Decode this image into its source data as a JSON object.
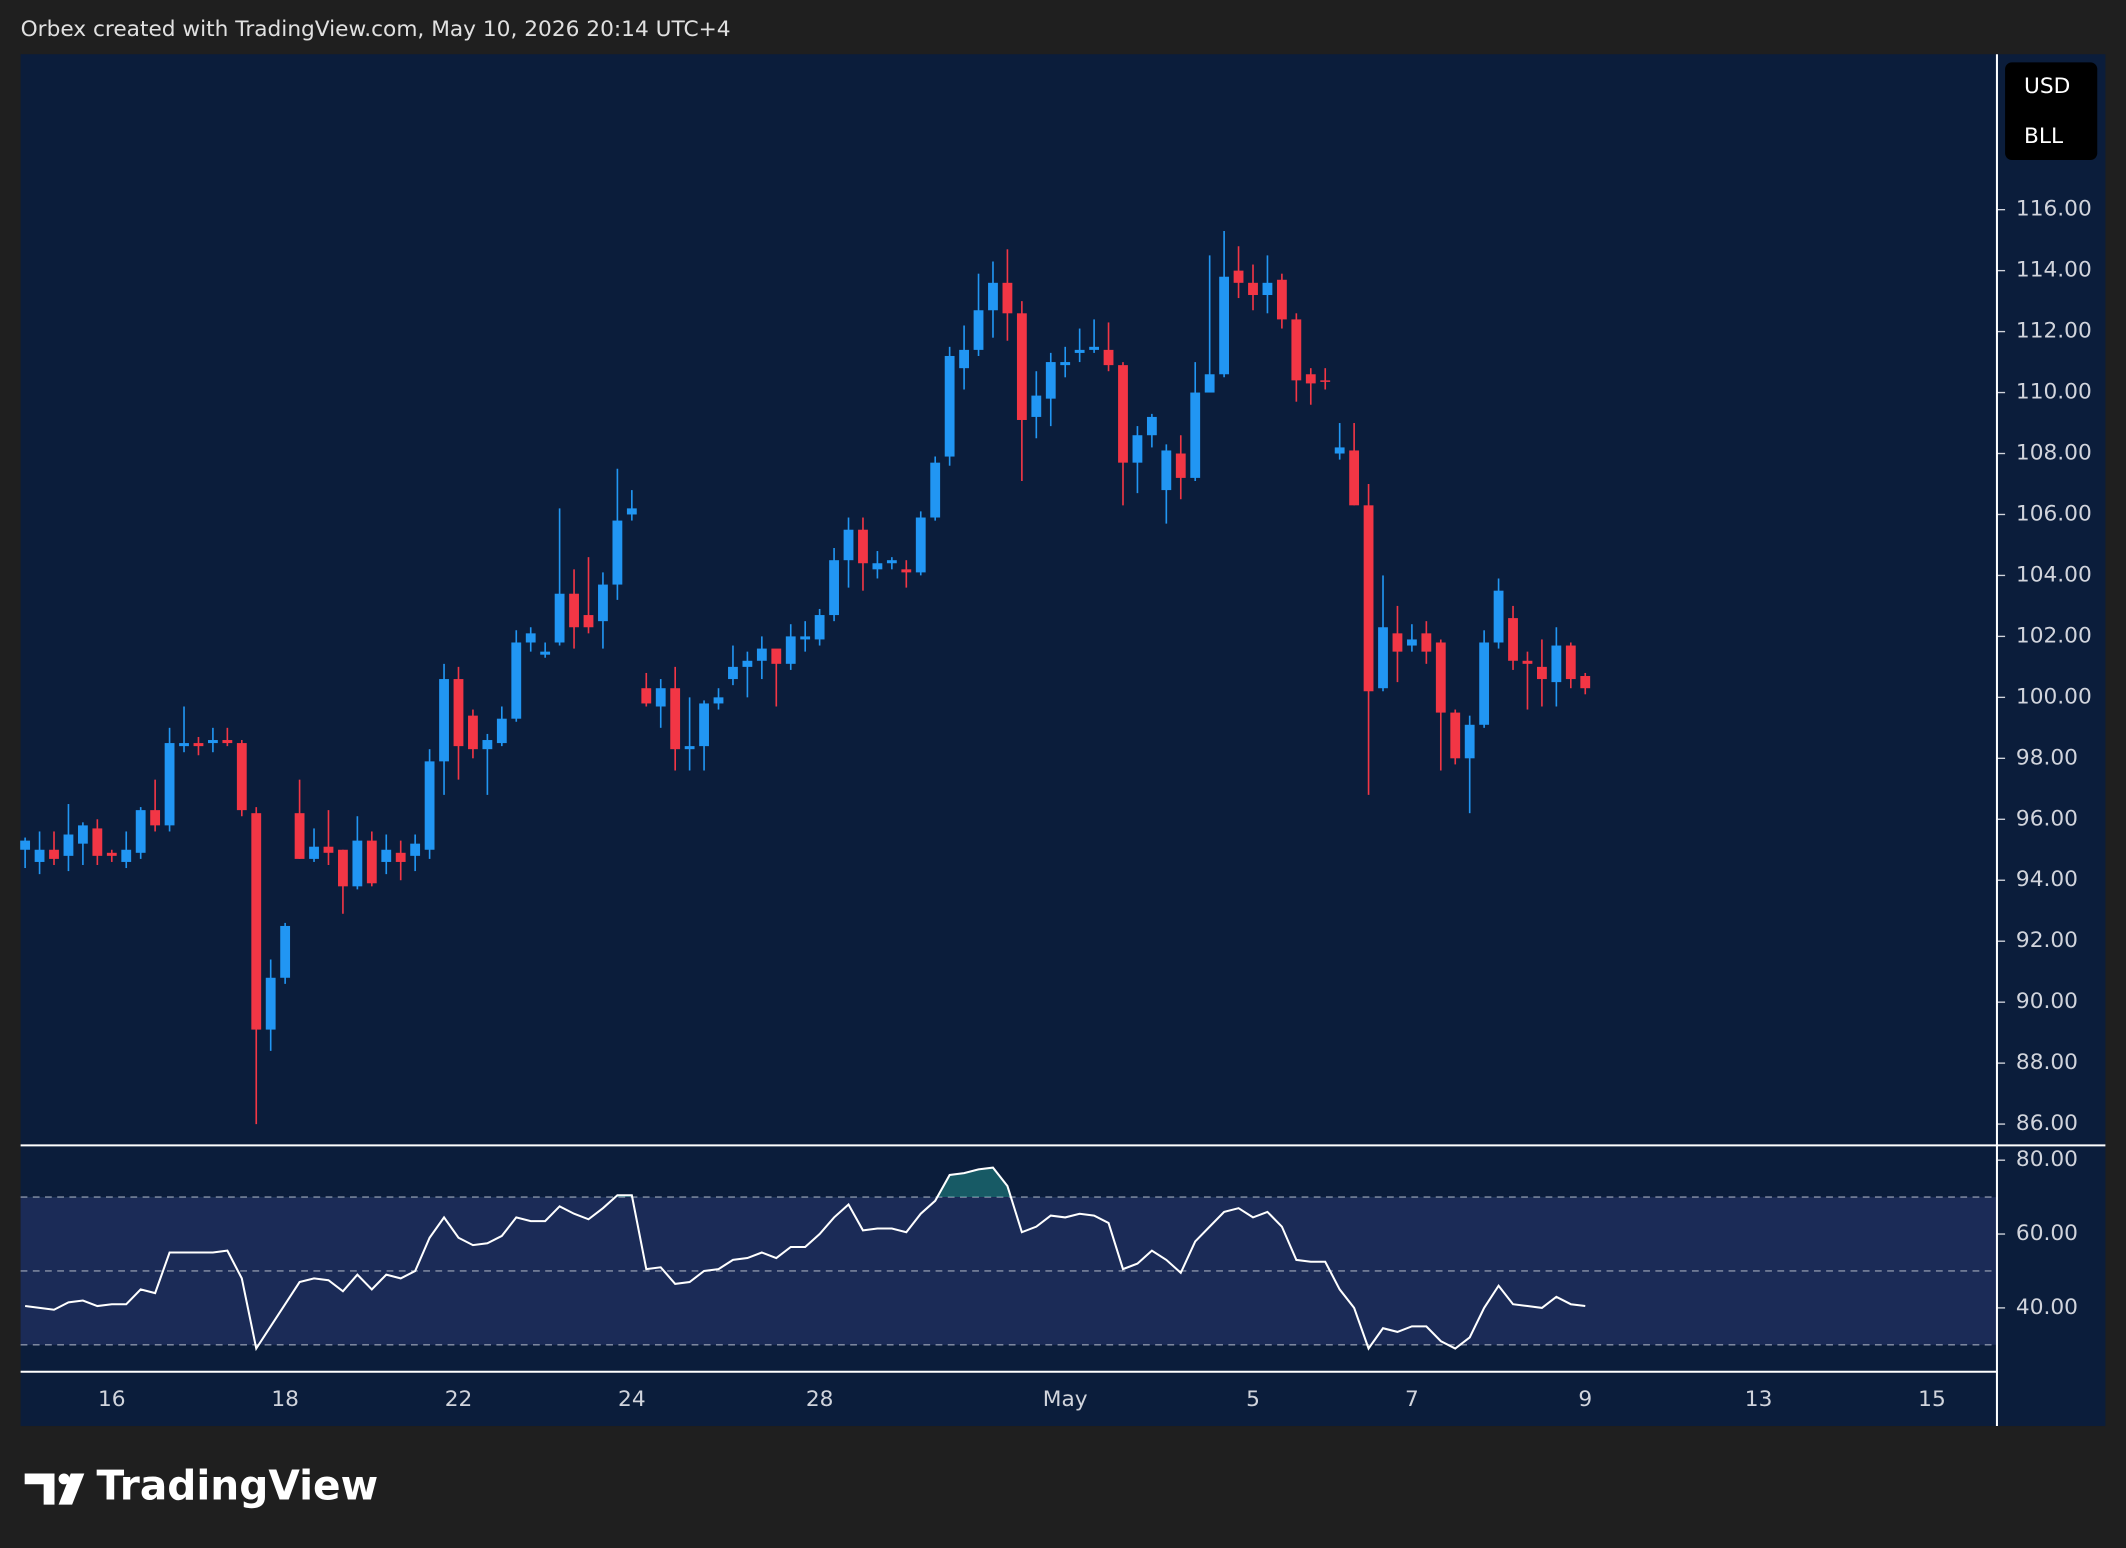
{
  "header": "Orbex created with TradingView.com, May 10, 2026 20:14 UTC+4",
  "brand": "TradingView",
  "currency_label": "USD",
  "unit_label": "BLL",
  "chart_data": [
    {
      "type": "candlestick",
      "categories": [
        null,
        null,
        null,
        null,
        null,
        null,
        "16",
        null,
        null,
        null,
        null,
        null,
        null,
        null,
        null,
        null,
        null,
        null,
        "18",
        null,
        null,
        null,
        null,
        null,
        null,
        null,
        null,
        null,
        null,
        null,
        "22",
        null,
        null,
        null,
        null,
        null,
        null,
        null,
        null,
        null,
        null,
        null,
        "24",
        null,
        null,
        null,
        null,
        null,
        null,
        null,
        null,
        null,
        null,
        null,
        null,
        "28",
        null,
        null,
        null,
        null,
        null,
        null,
        null,
        null,
        null,
        null,
        null,
        null,
        null,
        null,
        null,
        null,
        "May",
        null,
        null,
        null,
        null,
        null,
        null,
        null,
        null,
        null,
        null,
        null,
        null,
        "5",
        null,
        null,
        null,
        null,
        null,
        null,
        null,
        null,
        null,
        null,
        "7",
        null,
        null,
        null,
        null,
        null,
        null,
        null,
        null,
        null,
        null,
        null,
        "9",
        null,
        null,
        null,
        null,
        null,
        null,
        null,
        null,
        null,
        null,
        null,
        "13",
        null,
        null,
        null,
        null,
        null,
        null,
        null,
        null,
        null,
        null,
        null,
        "15",
        null,
        null,
        null,
        null
      ],
      "open": [
        95.0,
        94.6,
        95.0,
        94.8,
        95.2,
        95.7,
        94.9,
        94.6,
        94.9,
        96.3,
        95.8,
        98.4,
        98.5,
        98.5,
        98.6,
        98.5,
        96.2,
        89.1,
        90.8,
        96.2,
        94.7,
        95.1,
        95.0,
        93.8,
        95.3,
        94.6,
        94.9,
        94.8,
        95.0,
        97.9,
        100.6,
        99.4,
        98.3,
        98.5,
        99.3,
        101.8,
        101.4,
        101.8,
        103.4,
        102.7,
        102.5,
        103.7,
        106.0,
        100.3,
        99.7,
        100.3,
        98.3,
        98.4,
        99.8,
        100.6,
        101.0,
        101.2,
        101.6,
        101.1,
        101.9,
        101.9,
        102.7,
        104.5,
        105.5,
        104.2,
        104.4,
        104.2,
        104.1,
        105.9,
        107.9,
        110.8,
        111.4,
        112.7,
        113.6,
        112.6,
        109.2,
        109.8,
        110.9,
        111.3,
        111.4,
        111.4,
        110.9,
        107.7,
        108.6,
        106.8,
        108.0,
        107.2,
        110.0,
        110.6,
        114.0,
        113.6,
        113.2,
        113.7,
        112.4,
        110.6,
        110.4,
        108.0,
        108.1,
        106.3,
        100.3,
        102.1,
        101.7,
        102.1,
        101.8,
        99.5,
        98.0,
        99.1,
        101.8,
        102.6,
        101.2,
        101.0,
        100.5,
        101.7,
        100.7,
        null,
        null,
        null,
        null,
        null,
        null,
        null,
        null,
        null,
        null,
        null,
        null,
        null,
        null,
        null,
        null,
        null,
        null,
        null,
        null,
        null,
        null,
        null,
        null,
        null,
        null,
        null,
        null
      ],
      "high": [
        95.4,
        95.6,
        95.6,
        96.5,
        95.9,
        96.0,
        95.0,
        95.6,
        96.4,
        97.3,
        99.0,
        99.7,
        98.7,
        99.0,
        99.0,
        98.6,
        96.4,
        91.4,
        92.6,
        97.3,
        95.7,
        96.3,
        95.0,
        96.1,
        95.6,
        95.5,
        95.3,
        95.5,
        98.3,
        101.1,
        101.0,
        99.6,
        98.8,
        99.7,
        102.2,
        102.3,
        101.8,
        106.2,
        104.2,
        104.6,
        104.1,
        107.5,
        106.8,
        100.8,
        100.6,
        101.0,
        100.0,
        99.9,
        100.3,
        101.7,
        101.5,
        102.0,
        101.5,
        102.4,
        102.5,
        102.9,
        104.9,
        105.9,
        105.9,
        104.8,
        104.6,
        104.5,
        106.1,
        107.9,
        111.5,
        112.2,
        113.9,
        114.3,
        114.7,
        113.0,
        110.7,
        111.3,
        111.5,
        112.1,
        112.4,
        112.3,
        111.0,
        108.9,
        109.3,
        108.3,
        108.6,
        111.0,
        114.5,
        115.3,
        114.8,
        114.2,
        114.5,
        113.9,
        112.6,
        110.8,
        110.8,
        109.0,
        109.0,
        107.0,
        104.0,
        103.0,
        102.4,
        102.5,
        101.9,
        99.6,
        99.4,
        102.2,
        103.9,
        103.0,
        101.5,
        101.9,
        102.3,
        101.8,
        100.8,
        null,
        null,
        null,
        null,
        null,
        null,
        null,
        null,
        null,
        null,
        null,
        null,
        null,
        null,
        null,
        null,
        null,
        null,
        null,
        null,
        null,
        null,
        null,
        null,
        null,
        null,
        null,
        null
      ],
      "low": [
        94.4,
        94.2,
        94.5,
        94.3,
        94.5,
        94.5,
        94.6,
        94.4,
        94.7,
        95.6,
        95.6,
        98.2,
        98.1,
        98.2,
        98.4,
        96.1,
        86.0,
        88.4,
        90.6,
        94.7,
        94.6,
        94.5,
        92.9,
        93.7,
        93.8,
        94.2,
        94.0,
        94.3,
        94.7,
        96.8,
        97.3,
        98.0,
        96.8,
        98.4,
        99.2,
        101.5,
        101.3,
        101.7,
        101.6,
        102.1,
        101.6,
        103.2,
        105.8,
        99.7,
        99.0,
        97.6,
        97.6,
        97.6,
        99.6,
        100.4,
        100.0,
        100.6,
        99.7,
        100.9,
        101.5,
        101.7,
        102.5,
        103.6,
        103.5,
        103.9,
        104.2,
        103.6,
        104.0,
        105.8,
        107.6,
        110.1,
        111.2,
        111.8,
        111.7,
        107.1,
        108.5,
        108.9,
        110.5,
        111.0,
        111.3,
        110.7,
        106.3,
        106.7,
        108.2,
        105.7,
        106.5,
        107.1,
        110.0,
        110.5,
        113.1,
        112.7,
        112.6,
        112.1,
        109.7,
        109.6,
        110.1,
        107.8,
        106.3,
        96.8,
        100.2,
        100.5,
        101.5,
        101.1,
        97.6,
        97.8,
        96.2,
        99.0,
        101.6,
        100.9,
        99.6,
        99.7,
        99.7,
        100.3,
        100.1,
        null,
        null,
        null,
        null,
        null,
        null,
        null,
        null,
        null,
        null,
        null,
        null,
        null,
        null,
        null,
        null,
        null,
        null,
        null,
        null,
        null,
        null,
        null,
        null,
        null,
        null,
        null,
        null
      ],
      "close": [
        95.3,
        95.0,
        94.7,
        95.5,
        95.8,
        94.8,
        94.8,
        95.0,
        96.3,
        95.8,
        98.5,
        98.5,
        98.4,
        98.6,
        98.5,
        96.3,
        89.1,
        90.8,
        92.5,
        94.7,
        95.1,
        94.9,
        93.8,
        95.3,
        93.9,
        95.0,
        94.6,
        95.2,
        97.9,
        100.6,
        98.4,
        98.3,
        98.6,
        99.3,
        101.8,
        102.1,
        101.5,
        103.4,
        102.3,
        102.3,
        103.7,
        105.8,
        106.2,
        99.8,
        100.3,
        98.3,
        98.4,
        99.8,
        100.0,
        101.0,
        101.2,
        101.6,
        101.1,
        102.0,
        102.0,
        102.7,
        104.5,
        105.5,
        104.4,
        104.4,
        104.5,
        104.1,
        105.9,
        107.7,
        111.2,
        111.4,
        112.7,
        113.6,
        112.6,
        109.1,
        109.9,
        111.0,
        111.0,
        111.4,
        111.5,
        110.9,
        107.7,
        108.6,
        109.2,
        108.1,
        107.2,
        110.0,
        110.6,
        113.8,
        113.6,
        113.2,
        113.6,
        112.4,
        110.4,
        110.3,
        110.35,
        108.2,
        106.3,
        100.2,
        102.3,
        101.5,
        101.9,
        101.5,
        99.5,
        98.0,
        99.1,
        101.8,
        103.5,
        101.2,
        101.1,
        100.6,
        101.7,
        100.6,
        100.3,
        null,
        null,
        null,
        null,
        null,
        null,
        null,
        null,
        null,
        null,
        null,
        null,
        null,
        null,
        null,
        null,
        null,
        null,
        null,
        null,
        null,
        null,
        null,
        null,
        null,
        null,
        null,
        null
      ],
      "up_color": "#2196f3",
      "down_color": "#f23645",
      "ylim": [
        85.3,
        121.1
      ],
      "yticks": [
        {
          "value": 86,
          "label": "86.00"
        },
        {
          "value": 88,
          "label": "88.00"
        },
        {
          "value": 90,
          "label": "90.00"
        },
        {
          "value": 92,
          "label": "92.00"
        },
        {
          "value": 94,
          "label": "94.00"
        },
        {
          "value": 96,
          "label": "96.00"
        },
        {
          "value": 98,
          "label": "98.00"
        },
        {
          "value": 100,
          "label": "100.00"
        },
        {
          "value": 102,
          "label": "102.00"
        },
        {
          "value": 104,
          "label": "104.00"
        },
        {
          "value": 106,
          "label": "106.00"
        },
        {
          "value": 108,
          "label": "108.00"
        },
        {
          "value": 110,
          "label": "110.00"
        },
        {
          "value": 112,
          "label": "112.00"
        },
        {
          "value": 114,
          "label": "114.00"
        },
        {
          "value": 116,
          "label": "116.00"
        }
      ]
    },
    {
      "type": "line",
      "values": [
        40.5,
        40,
        39.5,
        41.5,
        42,
        40.5,
        41,
        41,
        45,
        44,
        55,
        55,
        55,
        55,
        55.5,
        48,
        29,
        35,
        41,
        47,
        48,
        47.5,
        44.5,
        49,
        45,
        49,
        48,
        50,
        59,
        64.5,
        59,
        57,
        57.5,
        59.5,
        64.5,
        63.5,
        63.5,
        67.5,
        65.5,
        64,
        67,
        70.5,
        70.5,
        50.5,
        51,
        46.5,
        47,
        50,
        50.5,
        53,
        53.5,
        55,
        53.5,
        56.5,
        56.5,
        60,
        64.5,
        68,
        61,
        61.5,
        61.5,
        60.5,
        65.5,
        69,
        76,
        76.5,
        77.5,
        78,
        73,
        60.5,
        62,
        65,
        64.5,
        65.5,
        65,
        63,
        50.5,
        52,
        55.5,
        53,
        49.5,
        58,
        62,
        66,
        67,
        64.5,
        66,
        62,
        53,
        52.5,
        52.5,
        45,
        40,
        29,
        34.5,
        33.5,
        35,
        35,
        31,
        29,
        32,
        40,
        46,
        41,
        40.5,
        40,
        43,
        41,
        40.5,
        null,
        null,
        null,
        null,
        null,
        null,
        null,
        null,
        null,
        null,
        null,
        null,
        null,
        null,
        null,
        null,
        null,
        null,
        null,
        null,
        null,
        null,
        null,
        null,
        null,
        null,
        null,
        null
      ],
      "color": "#ffffff",
      "levels": [
        70,
        50,
        30
      ],
      "ylim": [
        22.7,
        84
      ],
      "yticks": [
        {
          "value": 40,
          "label": "40.00"
        },
        {
          "value": 60,
          "label": "60.00"
        },
        {
          "value": 80,
          "label": "80.00"
        }
      ]
    }
  ]
}
